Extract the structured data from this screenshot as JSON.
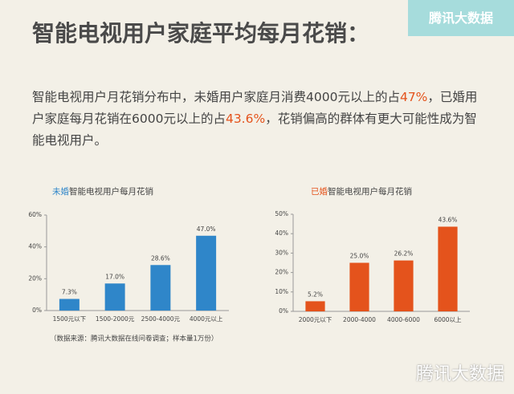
{
  "header": {
    "title": "智能电视用户家庭平均每月花销：",
    "logo": "腾讯大数据"
  },
  "intro": [
    "智能电视用户月花销分布中，未婚用户家庭月消费4000元以上的占",
    "47%",
    "，已婚用户家庭每月花销在6000元以上的占",
    "43.6%",
    "，花销偏高的群体有更大可能性成为智能电视用户。"
  ],
  "footnote": "（数据来源：腾讯大数据在线问卷调查；样本量1万份）",
  "watermark": "腾讯大数据",
  "chart_data": [
    {
      "type": "bar",
      "title_highlight": "未婚",
      "title": "智能电视用户每月花销",
      "categories": [
        "1500元以下",
        "1500-2000元",
        "2500-4000元",
        "4000元以上"
      ],
      "values": [
        7.3,
        17.0,
        28.6,
        47.0
      ],
      "value_labels": [
        "7.3%",
        "17.0%",
        "28.6%",
        "47.0%"
      ],
      "color": "#2f86c9",
      "ylim": [
        0,
        60
      ],
      "yticks": [
        {
          "value": 0,
          "label": "0%"
        },
        {
          "value": 20,
          "label": "20%"
        },
        {
          "value": 40,
          "label": "40%"
        },
        {
          "value": 60,
          "label": "60%"
        }
      ]
    },
    {
      "type": "bar",
      "title_highlight": "已婚",
      "title": "智能电视用户每月花销",
      "categories": [
        "2000元以下",
        "2000-4000",
        "4000-6000",
        "6000以上"
      ],
      "values": [
        5.2,
        25.0,
        26.2,
        43.6
      ],
      "value_labels": [
        "5.2%",
        "25.0%",
        "26.2%",
        "43.6%"
      ],
      "color": "#e4531c",
      "ylim": [
        0,
        50
      ],
      "yticks": [
        {
          "value": 0,
          "label": "0%"
        },
        {
          "value": 10,
          "label": "10%"
        },
        {
          "value": 20,
          "label": "20%"
        },
        {
          "value": 30,
          "label": "30%"
        },
        {
          "value": 40,
          "label": "40%"
        },
        {
          "value": 50,
          "label": "50%"
        }
      ]
    }
  ]
}
